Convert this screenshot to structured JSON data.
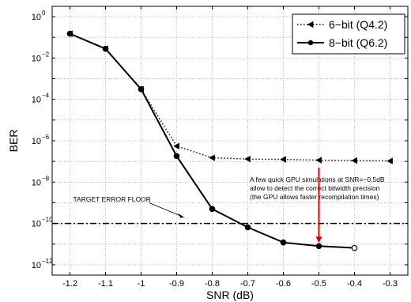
{
  "chart_data": {
    "type": "line",
    "xlabel": "SNR (dB)",
    "ylabel": "BER",
    "xlim": [
      -1.25,
      -0.25
    ],
    "ylim_log10": [
      -12.5,
      0.5
    ],
    "y_scale": "log",
    "x_ticks": [
      "-1.2",
      "-1.1",
      "-1",
      "-0.9",
      "-0.8",
      "-0.7",
      "-0.6",
      "-0.5",
      "-0.4",
      "-0.3"
    ],
    "grid": true,
    "legend_position": "top-right",
    "series": [
      {
        "name": "6−bit (Q4.2)",
        "line_style": "dotted",
        "marker": "left-triangle",
        "color": "#000000",
        "x": [
          -1.2,
          -1.1,
          -1.0,
          -0.9,
          -0.8,
          -0.7,
          -0.6,
          -0.5,
          -0.4,
          -0.3
        ],
        "y": [
          0.15,
          0.028,
          0.00031,
          5.5e-07,
          1.5e-07,
          1.3e-07,
          1.25e-07,
          1.15e-07,
          1.1e-07,
          1.05e-07
        ]
      },
      {
        "name": "8−bit (Q6.2)",
        "line_style": "solid",
        "marker": "circle",
        "color": "#000000",
        "x": [
          -1.2,
          -1.1,
          -1.0,
          -0.9,
          -0.8,
          -0.7,
          -0.6,
          -0.5,
          -0.4
        ],
        "y": [
          0.15,
          0.028,
          0.00031,
          1.8e-07,
          5e-10,
          6.5e-11,
          1.2e-11,
          8e-12,
          6.5e-12
        ]
      }
    ],
    "floor": {
      "label": "TARGET ERROR FLOOR",
      "y": 1e-10,
      "line_style": "dash-dot"
    },
    "annotation": {
      "lines": [
        "A few quick GPU simulations at SNR=−0.5dB",
        "allow to detect the correct bitwidth precision",
        "(the GPU allows faster recompilation times)"
      ],
      "arrow_x": -0.5,
      "arrow_color": "#e00000"
    }
  }
}
